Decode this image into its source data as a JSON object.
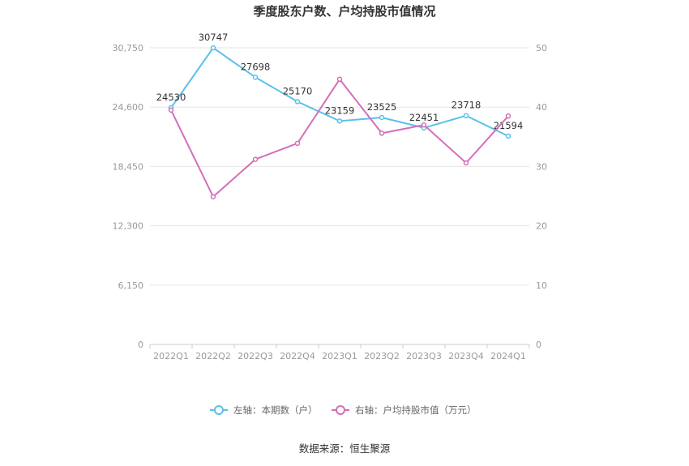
{
  "chart_data": {
    "type": "line",
    "title": "季度股东户数、户均持股市值情况",
    "categories": [
      "2022Q1",
      "2022Q2",
      "2022Q3",
      "2022Q4",
      "2023Q1",
      "2023Q2",
      "2023Q3",
      "2023Q4",
      "2024Q1"
    ],
    "y_left": {
      "ticks": [
        "0",
        "6,150",
        "12,300",
        "18,450",
        "24,600",
        "30,750"
      ],
      "ylim": [
        0,
        30750
      ]
    },
    "y_right": {
      "ticks": [
        "0",
        "10",
        "20",
        "30",
        "40",
        "50"
      ],
      "ylim": [
        0,
        50
      ]
    },
    "series": [
      {
        "name": "左轴：本期数（户）",
        "axis": "left",
        "color": "#5bc0eb",
        "values": [
          24530,
          30747,
          27698,
          25170,
          23159,
          23525,
          22451,
          23718,
          21594
        ],
        "labels": [
          "24530",
          "30747",
          "27698",
          "25170",
          "23159",
          "23525",
          "22451",
          "23718",
          "21594"
        ]
      },
      {
        "name": "右轴：户均持股市值（万元）",
        "axis": "right",
        "color": "#d46eb9",
        "values": [
          39.5,
          24.9,
          31.2,
          33.9,
          44.7,
          35.6,
          37.0,
          30.6,
          38.5
        ]
      }
    ],
    "grid": true,
    "legend_position": "bottom"
  },
  "source": "数据来源：恒生聚源"
}
